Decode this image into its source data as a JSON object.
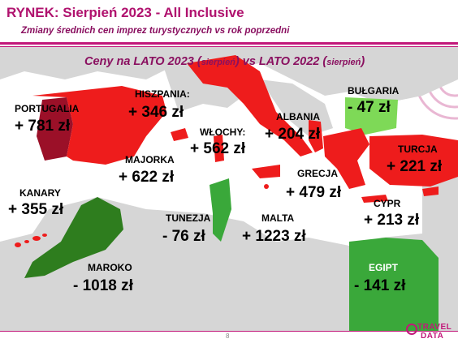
{
  "header": {
    "title": "RYNEK: Sierpień 2023 - All Inclusive",
    "subtitle": "Zmiany średnich cen imprez turystycznych vs rok poprzedni"
  },
  "map_header": {
    "part1": "Ceny na LATO 2023 (",
    "part2": "sierpień",
    "part3": ") vs  LATO 2022 (",
    "part4": "sierpień",
    "part5": ")"
  },
  "destinations": {
    "portugalia": {
      "label": "PORTUGALIA",
      "value": "+ 781 zł"
    },
    "hiszpania": {
      "label": "HISZPANIA:",
      "value": "+ 346 zł"
    },
    "majorka": {
      "label": "MAJORKA",
      "value": "+ 622 zł"
    },
    "kanary": {
      "label": "KANARY",
      "value": "+ 355 zł"
    },
    "wlochy": {
      "label": "WŁOCHY:",
      "value": "+ 562 zł"
    },
    "albania": {
      "label": "ALBANIA",
      "value": "+ 204 zł"
    },
    "bulgaria": {
      "label": "BUŁGARIA",
      "value": "- 47 zł"
    },
    "turcja": {
      "label": "TURCJA",
      "value": "+ 221 zł"
    },
    "grecja": {
      "label": "GRECJA",
      "value": "+ 479 zł"
    },
    "cypr": {
      "label": "CYPR",
      "value": "+ 213 zł"
    },
    "tunezja": {
      "label": "TUNEZJA",
      "value": "- 76 zł"
    },
    "malta": {
      "label": "MALTA",
      "value": "+ 1223 zł"
    },
    "maroko": {
      "label": "MAROKO",
      "value": "- 1018 zł"
    },
    "egipt": {
      "label": "EGIPT",
      "value": "- 141 zł"
    }
  },
  "footer": {
    "page_number": "8",
    "logo_line1": "TRAVEL",
    "logo_line2": "DATA"
  },
  "colors": {
    "accent": "#c2187a",
    "increase": "#ee1c1c",
    "decrease": "#2e7d1e",
    "decrease_light": "#7ed957",
    "sea": "#ffffff",
    "land": "#d4d4d4"
  }
}
